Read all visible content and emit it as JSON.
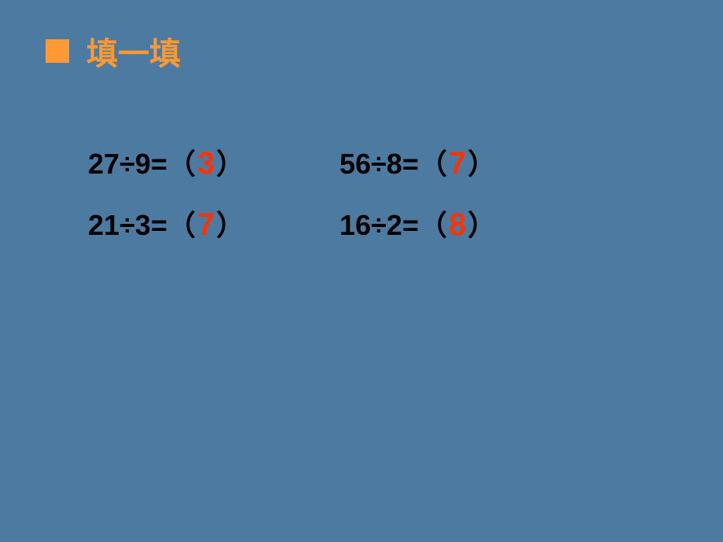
{
  "header": {
    "title": "填一填",
    "title_color": "#ff9933",
    "title_fontsize": 40,
    "bullet_color": "#ff9933"
  },
  "background_color": "#4d7aa0",
  "problems": {
    "row1": {
      "left": {
        "expression": "27÷9=（",
        "answer": "3",
        "close": "）"
      },
      "right": {
        "expression": "56÷8=（",
        "answer": "7",
        "close": "）"
      }
    },
    "row2": {
      "left": {
        "expression": "21÷3=（",
        "answer": "7",
        "close": "）"
      },
      "right": {
        "expression": "16÷2=（",
        "answer": "8",
        "close": "）"
      }
    }
  },
  "styling": {
    "expression_color": "#000000",
    "expression_fontsize": 36,
    "answer_color": "#ff3300",
    "answer_fontsize": 40,
    "font_weight": "bold"
  }
}
